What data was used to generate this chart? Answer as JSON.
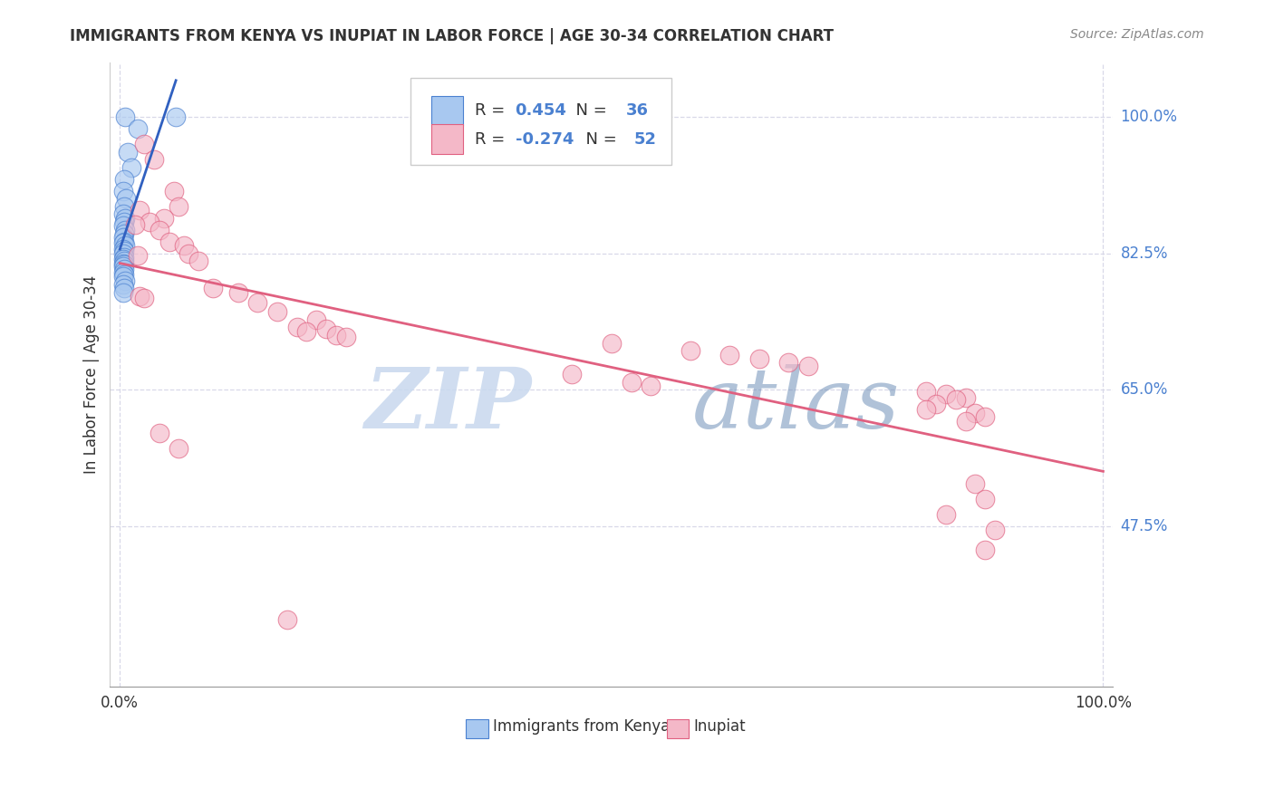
{
  "title": "IMMIGRANTS FROM KENYA VS INUPIAT IN LABOR FORCE | AGE 30-34 CORRELATION CHART",
  "source": "Source: ZipAtlas.com",
  "ylabel": "In Labor Force | Age 30-34",
  "r_kenya": 0.454,
  "n_kenya": 36,
  "r_inupiat": -0.274,
  "n_inupiat": 52,
  "kenya_color": "#a8c8f0",
  "inupiat_color": "#f4b8c8",
  "kenya_edge_color": "#4a80d0",
  "inupiat_edge_color": "#e06080",
  "kenya_line_color": "#3060c0",
  "inupiat_line_color": "#e06080",
  "kenya_points": [
    [
      0.005,
      1.0
    ],
    [
      0.018,
      0.985
    ],
    [
      0.008,
      0.955
    ],
    [
      0.012,
      0.935
    ],
    [
      0.004,
      0.92
    ],
    [
      0.003,
      0.905
    ],
    [
      0.006,
      0.895
    ],
    [
      0.004,
      0.885
    ],
    [
      0.003,
      0.875
    ],
    [
      0.005,
      0.87
    ],
    [
      0.004,
      0.865
    ],
    [
      0.003,
      0.86
    ],
    [
      0.005,
      0.855
    ],
    [
      0.004,
      0.85
    ],
    [
      0.003,
      0.845
    ],
    [
      0.004,
      0.84
    ],
    [
      0.003,
      0.838
    ],
    [
      0.005,
      0.835
    ],
    [
      0.003,
      0.83
    ],
    [
      0.004,
      0.828
    ],
    [
      0.003,
      0.825
    ],
    [
      0.004,
      0.82
    ],
    [
      0.003,
      0.818
    ],
    [
      0.004,
      0.815
    ],
    [
      0.003,
      0.812
    ],
    [
      0.004,
      0.81
    ],
    [
      0.003,
      0.808
    ],
    [
      0.004,
      0.805
    ],
    [
      0.003,
      0.8
    ],
    [
      0.004,
      0.798
    ],
    [
      0.003,
      0.795
    ],
    [
      0.005,
      0.79
    ],
    [
      0.003,
      0.785
    ],
    [
      0.004,
      0.78
    ],
    [
      0.003,
      0.775
    ],
    [
      0.057,
      1.0
    ]
  ],
  "inupiat_points": [
    [
      0.025,
      0.965
    ],
    [
      0.035,
      0.945
    ],
    [
      0.055,
      0.905
    ],
    [
      0.06,
      0.885
    ],
    [
      0.02,
      0.88
    ],
    [
      0.045,
      0.87
    ],
    [
      0.03,
      0.865
    ],
    [
      0.015,
      0.862
    ],
    [
      0.04,
      0.855
    ],
    [
      0.05,
      0.84
    ],
    [
      0.065,
      0.835
    ],
    [
      0.07,
      0.825
    ],
    [
      0.018,
      0.822
    ],
    [
      0.08,
      0.815
    ],
    [
      0.095,
      0.78
    ],
    [
      0.12,
      0.775
    ],
    [
      0.02,
      0.77
    ],
    [
      0.025,
      0.768
    ],
    [
      0.14,
      0.762
    ],
    [
      0.16,
      0.75
    ],
    [
      0.2,
      0.74
    ],
    [
      0.18,
      0.73
    ],
    [
      0.21,
      0.728
    ],
    [
      0.19,
      0.725
    ],
    [
      0.22,
      0.72
    ],
    [
      0.23,
      0.718
    ],
    [
      0.5,
      0.71
    ],
    [
      0.58,
      0.7
    ],
    [
      0.62,
      0.695
    ],
    [
      0.65,
      0.69
    ],
    [
      0.68,
      0.685
    ],
    [
      0.7,
      0.68
    ],
    [
      0.46,
      0.67
    ],
    [
      0.52,
      0.66
    ],
    [
      0.54,
      0.655
    ],
    [
      0.82,
      0.648
    ],
    [
      0.84,
      0.645
    ],
    [
      0.86,
      0.64
    ],
    [
      0.85,
      0.638
    ],
    [
      0.83,
      0.632
    ],
    [
      0.82,
      0.625
    ],
    [
      0.87,
      0.62
    ],
    [
      0.88,
      0.615
    ],
    [
      0.86,
      0.61
    ],
    [
      0.04,
      0.595
    ],
    [
      0.06,
      0.575
    ],
    [
      0.87,
      0.53
    ],
    [
      0.88,
      0.51
    ],
    [
      0.84,
      0.49
    ],
    [
      0.89,
      0.47
    ],
    [
      0.88,
      0.445
    ],
    [
      0.17,
      0.355
    ]
  ],
  "xlim": [
    0.0,
    1.0
  ],
  "ylim": [
    0.27,
    1.07
  ],
  "yticks": [
    0.475,
    0.65,
    0.825,
    1.0
  ],
  "ytick_labels": [
    "47.5%",
    "65.0%",
    "82.5%",
    "100.0%"
  ],
  "xticks": [
    0.0,
    1.0
  ],
  "xtick_labels": [
    "0.0%",
    "100.0%"
  ],
  "watermark_zip": "ZIP",
  "watermark_atlas": "atlas",
  "bg_color": "#ffffff",
  "grid_color": "#d8d8e8",
  "tick_color": "#4a80d0",
  "title_color": "#333333",
  "source_color": "#888888"
}
